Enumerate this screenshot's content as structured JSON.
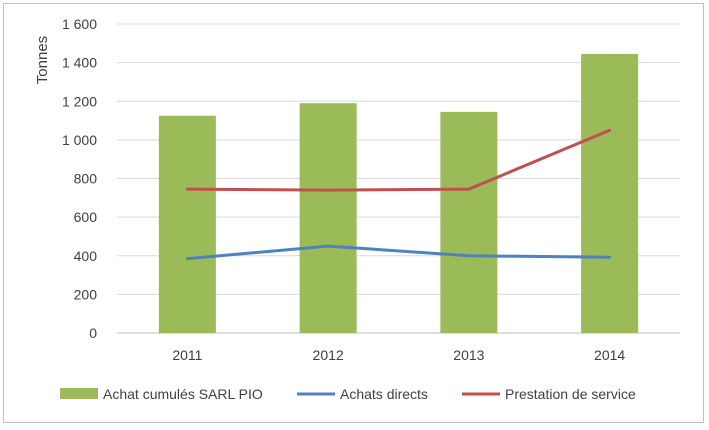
{
  "chart_data": {
    "type": "bar",
    "title": "",
    "xlabel": "",
    "ylabel": "Tonnes",
    "categories": [
      "2011",
      "2012",
      "2013",
      "2014"
    ],
    "ylim": [
      0,
      1600
    ],
    "yticks": [
      0,
      200,
      400,
      600,
      800,
      1000,
      1200,
      1400,
      1600
    ],
    "ytick_labels": [
      "0",
      "200",
      "400",
      "600",
      "800",
      "1 000",
      "1 200",
      "1 400",
      "1 600"
    ],
    "grid": true,
    "legend_position": "bottom",
    "series": [
      {
        "name": "Achat cumulés SARL PIO",
        "type": "bar",
        "color": "#9bbb59",
        "values": [
          1125,
          1190,
          1145,
          1445
        ]
      },
      {
        "name": "Achats directs",
        "type": "line",
        "color": "#4f81bd",
        "values": [
          385,
          450,
          400,
          392
        ]
      },
      {
        "name": "Prestation de service",
        "type": "line",
        "color": "#c0504d",
        "values": [
          745,
          740,
          745,
          1050
        ]
      }
    ]
  }
}
